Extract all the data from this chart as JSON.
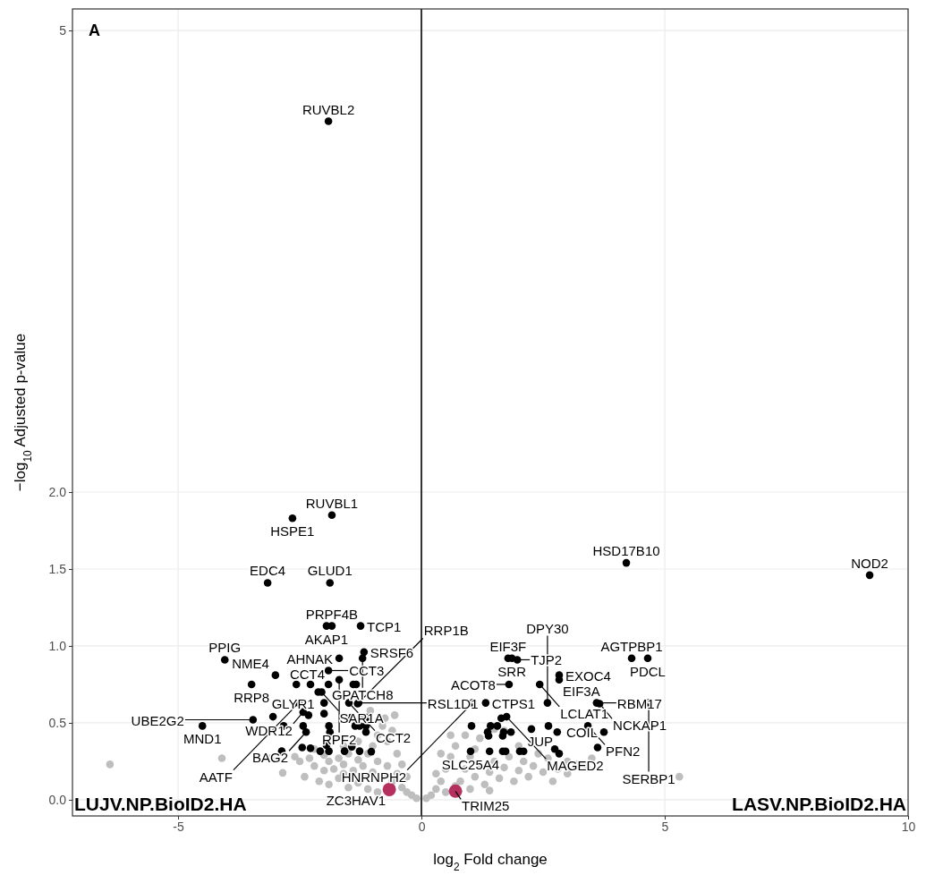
{
  "chart_data": {
    "type": "scatter",
    "xlabel": "log$_{2}$ Fold change",
    "ylabel": "−log$_{10}$ Adjusted p-value",
    "xlim": [
      -7.17,
      10
    ],
    "ylim": [
      -0.105,
      5.14
    ],
    "xticks": [
      {
        "value": -5,
        "label": "-5"
      },
      0,
      5,
      10
    ],
    "yticks": [
      {
        "value": 0,
        "label": "0.0"
      },
      {
        "value": 0.5,
        "label": "0.5"
      },
      {
        "value": 1,
        "label": "1.0"
      },
      {
        "value": 1.5,
        "label": "1.5"
      },
      {
        "value": 2,
        "label": "2.0"
      },
      5
    ],
    "grid": true,
    "marker": "circle",
    "ref_lines": [
      {
        "axis": "x",
        "value": 0,
        "color": "#333333"
      }
    ],
    "series": [
      {
        "color": "#bebebe",
        "x": [
          -6.4,
          -4.1,
          -2.85,
          -2.6,
          -2.5,
          -2.3,
          -2.2,
          -2,
          -1.9,
          -1.8,
          -1.7,
          -1.6,
          -1.5,
          -1.4,
          -1.3,
          -1.2,
          -1.1,
          -1,
          -0.9,
          -0.8,
          -0.7,
          -0.6,
          -0.5,
          -0.4,
          -0.3,
          -0.2,
          -0.1,
          -2.4,
          -2.1,
          -1.9,
          -1.7,
          -1.5,
          -1.3,
          -1.1,
          -0.9,
          -1.2,
          -1.6,
          -2,
          -1,
          -0.9,
          -0.8,
          -0.75,
          -0.6,
          -0.7,
          -0.5,
          -0.4,
          -0.3,
          -1.3,
          -1.6,
          -3.1,
          -2.2,
          -1.05,
          -0.55,
          0.1,
          0.2,
          0.3,
          0.4,
          0.5,
          0.6,
          0.7,
          0.8,
          0.9,
          1,
          1.1,
          1.2,
          1.3,
          1.4,
          1.5,
          1.6,
          1.7,
          1.8,
          1.9,
          2,
          2.1,
          2.2,
          2.3,
          2.5,
          2.6,
          2.8,
          3,
          3.2,
          3.4,
          3.5,
          5.3,
          1.2,
          1.5,
          1.7,
          0.9,
          1.1,
          2,
          2.4,
          0.5,
          0.7,
          1,
          1.4,
          0.3,
          0.4,
          0.6,
          3,
          2.7
        ],
        "values": [
          0.23,
          0.27,
          0.175,
          0.28,
          0.25,
          0.27,
          0.22,
          0.29,
          0.25,
          0.2,
          0.27,
          0.23,
          0.3,
          0.19,
          0.26,
          0.22,
          0.3,
          0.18,
          0.25,
          0.15,
          0.22,
          0.12,
          0.17,
          0.08,
          0.05,
          0.03,
          0.01,
          0.15,
          0.12,
          0.1,
          0.14,
          0.08,
          0.11,
          0.07,
          0.05,
          0.15,
          0.17,
          0.19,
          0.35,
          0.42,
          0.48,
          0.53,
          0.45,
          0.38,
          0.3,
          0.23,
          0.15,
          0.38,
          0.35,
          0.27,
          0.33,
          0.58,
          0.55,
          0.01,
          0.03,
          0.07,
          0.12,
          0.2,
          0.28,
          0.35,
          0.12,
          0.2,
          0.28,
          0.15,
          0.22,
          0.1,
          0.18,
          0.25,
          0.14,
          0.21,
          0.28,
          0.12,
          0.19,
          0.25,
          0.15,
          0.22,
          0.18,
          0.27,
          0.2,
          0.25,
          0.23,
          0.21,
          0.27,
          0.15,
          0.4,
          0.46,
          0.45,
          0.42,
          0.33,
          0.35,
          0.3,
          0.05,
          0.09,
          0.07,
          0.06,
          0.17,
          0.3,
          0.42,
          0.17,
          0.12
        ]
      },
      {
        "color": "#000000",
        "x": [
          -1.91,
          -1.84,
          -2.65,
          4.21,
          9.21,
          -3.16,
          -1.88,
          -1.84,
          -1.95,
          -1.25,
          -1.18,
          -1.69,
          -1.21,
          -4.04,
          -1.91,
          -3.0,
          -1.91,
          -1.69,
          -3.49,
          -2.12,
          -2.05,
          -2.52,
          -1.49,
          -1.29,
          -1.31,
          -2.43,
          -3.46,
          -4.5,
          -2.37,
          1.78,
          1.86,
          1.97,
          4.32,
          4.65,
          2.83,
          2.83,
          1.8,
          2.43,
          1.05,
          1.32,
          2.59,
          3.6,
          4.67,
          3.66,
          1.75,
          3.42,
          3.75,
          1.01,
          2.83,
          -2.0,
          -2.32,
          -2.0,
          -3.05,
          -2.57,
          -2.28,
          -1.4,
          -1.34,
          -2.83,
          -2.43,
          -1.9,
          -1.36,
          -1.27,
          -1.14,
          -1.88,
          -1.14,
          -1.44,
          -1.12,
          -2.87,
          -2.45,
          -2.28,
          -1.95,
          -1.9,
          -1.58,
          -1.43,
          -1.27,
          -1.03,
          -2.08,
          1.64,
          2.61,
          1.03,
          1.42,
          1.56,
          2.26,
          2.79,
          1.36,
          1.69,
          1.84,
          1.38,
          1.67,
          1.4,
          1.67,
          1.73,
          2.02,
          2.1,
          2.74,
          3.62
        ],
        "values": [
          4.41,
          1.85,
          1.83,
          1.54,
          1.46,
          1.41,
          1.41,
          1.13,
          1.13,
          1.13,
          0.96,
          0.92,
          0.92,
          0.91,
          0.84,
          0.81,
          0.75,
          0.78,
          0.75,
          0.7,
          0.7,
          0.63,
          0.63,
          0.63,
          0.625,
          0.57,
          0.52,
          0.48,
          0.44,
          0.92,
          0.92,
          0.91,
          0.92,
          0.92,
          0.81,
          0.78,
          0.75,
          0.75,
          0.63,
          0.63,
          0.63,
          0.63,
          0.63,
          0.625,
          0.54,
          0.48,
          0.44,
          0.315,
          0.3,
          0.63,
          0.55,
          0.56,
          0.54,
          0.75,
          0.75,
          0.75,
          0.75,
          0.48,
          0.48,
          0.48,
          0.48,
          0.48,
          0.48,
          0.44,
          0.44,
          0.535,
          0.535,
          0.316,
          0.34,
          0.335,
          0.354,
          0.316,
          0.316,
          0.345,
          0.316,
          0.313,
          0.316,
          0.53,
          0.48,
          0.48,
          0.48,
          0.48,
          0.46,
          0.44,
          0.44,
          0.44,
          0.44,
          0.415,
          0.415,
          0.315,
          0.315,
          0.315,
          0.315,
          0.315,
          0.33,
          0.34
        ]
      },
      {
        "color": "#b5305f",
        "x": [
          -0.66,
          0.7
        ],
        "values": [
          0.067,
          0.056
        ]
      }
    ],
    "annotations": [
      "A",
      "LUJV.NP.BioID2.HA",
      "LASV.NP.BioID2.HA",
      {
        "text": "RUVBL2",
        "x": -1.91,
        "y": 4.41
      },
      {
        "text": "RUVBL1",
        "x": -1.84,
        "y": 1.85
      },
      {
        "text": "HSPE1",
        "x": -2.65,
        "y": 1.83
      },
      {
        "text": "HSD17B10",
        "x": 4.21,
        "y": 1.54
      },
      {
        "text": "NOD2",
        "x": 9.21,
        "y": 1.46
      },
      {
        "text": "EDC4",
        "x": -3.16,
        "y": 1.41
      },
      {
        "text": "GLUD1",
        "x": -1.88,
        "y": 1.41
      },
      {
        "text": "PRPF4B",
        "x": -1.84,
        "y": 1.13
      },
      {
        "text": "AKAP1",
        "x": -1.95,
        "y": 1.13
      },
      {
        "text": "TCP1",
        "x": -1.25,
        "y": 1.13
      },
      {
        "text": "SRSF6",
        "x": -1.18,
        "y": 0.96
      },
      {
        "text": "AHNAK",
        "x": -1.69,
        "y": 0.92
      },
      {
        "text": "GPATCH8",
        "x": -1.21,
        "y": 0.92
      },
      {
        "text": "PPIG",
        "x": -4.04,
        "y": 0.91
      },
      {
        "text": "CCT3",
        "x": -1.91,
        "y": 0.84
      },
      {
        "text": "NME4",
        "x": -3.0,
        "y": 0.81
      },
      {
        "text": "CCT4",
        "x": -1.91,
        "y": 0.75
      },
      {
        "text": "RPF2",
        "x": -1.69,
        "y": 0.78
      },
      {
        "text": "RRP8",
        "x": -3.49,
        "y": 0.75
      },
      {
        "text": "GLYR1",
        "x": -2.12,
        "y": 0.7
      },
      {
        "text": "SAR1A",
        "x": -2.05,
        "y": 0.7
      },
      {
        "text": "AATF",
        "x": -2.52,
        "y": 0.63
      },
      {
        "text": "CCT2",
        "x": -1.49,
        "y": 0.63
      },
      {
        "text": "RSL1D1",
        "x": -1.29,
        "y": 0.63
      },
      {
        "text": "RRP1B",
        "x": -1.31,
        "y": 0.625
      },
      {
        "text": "WDR12",
        "x": -2.43,
        "y": 0.57
      },
      {
        "text": "UBE2G2",
        "x": -3.46,
        "y": 0.52
      },
      {
        "text": "MND1",
        "x": -4.5,
        "y": 0.48
      },
      {
        "text": "BAG2",
        "x": -2.37,
        "y": 0.44
      },
      {
        "text": "EIF3F",
        "x": 1.78,
        "y": 0.92
      },
      {
        "text": "SRR",
        "x": 1.86,
        "y": 0.92
      },
      {
        "text": "TJP2",
        "x": 1.97,
        "y": 0.91
      },
      {
        "text": "AGTPBP1",
        "x": 4.32,
        "y": 0.92
      },
      {
        "text": "PDCL",
        "x": 4.65,
        "y": 0.92
      },
      {
        "text": "EXOC4",
        "x": 2.83,
        "y": 0.81
      },
      {
        "text": "EIF3A",
        "x": 2.83,
        "y": 0.78
      },
      {
        "text": "ACOT8",
        "x": 1.8,
        "y": 0.75
      },
      {
        "text": "LCLAT1",
        "x": 2.43,
        "y": 0.75
      },
      {
        "text": "HNRNPH2",
        "x": 1.05,
        "y": 0.63
      },
      {
        "text": "CTPS1",
        "x": 1.32,
        "y": 0.63
      },
      {
        "text": "DPY30",
        "x": 2.59,
        "y": 0.63
      },
      {
        "text": "RBM17",
        "x": 3.6,
        "y": 0.63
      },
      {
        "text": "SERBP1",
        "x": 4.67,
        "y": 0.63
      },
      {
        "text": "NCKAP1",
        "x": 3.66,
        "y": 0.625
      },
      {
        "text": "MAGED2",
        "x": 1.75,
        "y": 0.54
      },
      {
        "text": "PFN2",
        "x": 3.42,
        "y": 0.48
      },
      {
        "text": "COIL",
        "x": 3.75,
        "y": 0.44
      },
      {
        "text": "SLC25A4",
        "x": 1.01,
        "y": 0.315
      },
      {
        "text": "JUP",
        "x": 2.83,
        "y": 0.3
      },
      {
        "text": "ZC3HAV1",
        "x": -0.66,
        "y": 0.067
      },
      {
        "text": "TRIM25",
        "x": 0.7,
        "y": 0.056
      }
    ]
  }
}
